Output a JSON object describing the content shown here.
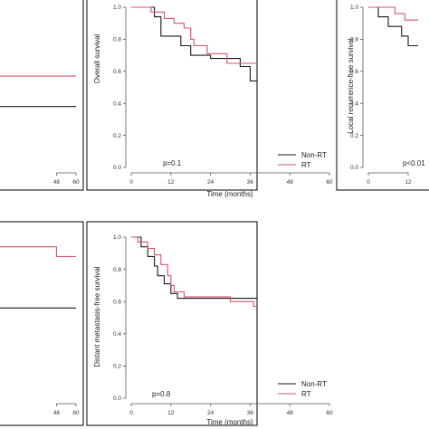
{
  "colors": {
    "non_rt": "#1a1a1a",
    "rt": "#d6536a"
  },
  "chart_data": [
    {
      "type": "line",
      "name": "top-left-partial",
      "xlabel": "",
      "ylabel": "",
      "p_value": "",
      "xlim": [
        0,
        60
      ],
      "ylim": [
        0,
        1
      ],
      "xticks": [
        48,
        60
      ],
      "yticks": [],
      "legend": {
        "entries": [],
        "placement": "bottom-right"
      },
      "series": [
        {
          "name": "Non-RT",
          "points": [
            [
              0,
              0.38
            ],
            [
              60,
              0.38
            ]
          ]
        },
        {
          "name": "RT",
          "points": [
            [
              0,
              0.57
            ],
            [
              60,
              0.57
            ]
          ]
        }
      ]
    },
    {
      "type": "line",
      "name": "overall-survival",
      "xlabel": "Time (months)",
      "ylabel": "Overall survival",
      "p_value": "p=0.1",
      "xlim": [
        0,
        60
      ],
      "ylim": [
        0,
        1
      ],
      "xticks": [
        0,
        12,
        24,
        36,
        48,
        60
      ],
      "yticks": [
        0.0,
        0.2,
        0.4,
        0.6,
        0.8,
        1.0
      ],
      "ytick_labels": [
        "0.0",
        "0.2",
        "0.4",
        "0.6",
        "0.8",
        "1.0"
      ],
      "legend": {
        "entries": [
          "Non-RT",
          "RT"
        ],
        "placement": "bottom-right"
      },
      "series": [
        {
          "name": "Non-RT",
          "points": [
            [
              0,
              1.0
            ],
            [
              7,
              1.0
            ],
            [
              7,
              0.94
            ],
            [
              9,
              0.94
            ],
            [
              9,
              0.82
            ],
            [
              15,
              0.82
            ],
            [
              15,
              0.76
            ],
            [
              18,
              0.76
            ],
            [
              18,
              0.7
            ],
            [
              24,
              0.7
            ],
            [
              24,
              0.68
            ],
            [
              33,
              0.68
            ],
            [
              33,
              0.63
            ],
            [
              36,
              0.63
            ],
            [
              36,
              0.54
            ],
            [
              47,
              0.54
            ],
            [
              47,
              0.46
            ],
            [
              56,
              0.46
            ],
            [
              56,
              0.38
            ],
            [
              60,
              0.38
            ]
          ]
        },
        {
          "name": "RT",
          "points": [
            [
              0,
              1.0
            ],
            [
              6,
              1.0
            ],
            [
              6,
              0.97
            ],
            [
              10,
              0.97
            ],
            [
              10,
              0.93
            ],
            [
              13,
              0.93
            ],
            [
              13,
              0.9
            ],
            [
              16,
              0.9
            ],
            [
              16,
              0.87
            ],
            [
              18,
              0.87
            ],
            [
              18,
              0.8
            ],
            [
              19,
              0.8
            ],
            [
              19,
              0.76
            ],
            [
              23,
              0.76
            ],
            [
              23,
              0.71
            ],
            [
              29,
              0.71
            ],
            [
              29,
              0.65
            ],
            [
              60,
              0.65
            ]
          ]
        }
      ]
    },
    {
      "type": "line",
      "name": "local-recurrence-free-survival-partial",
      "xlabel": "",
      "ylabel": "Local recurrence-free survival",
      "p_value": "p<0.01",
      "xlim": [
        0,
        60
      ],
      "ylim": [
        0,
        1
      ],
      "xticks": [
        0,
        12
      ],
      "yticks": [
        0.0,
        0.2,
        0.4,
        0.6,
        0.8,
        1.0
      ],
      "ytick_labels": [
        "0.0",
        "0.2",
        "0.4",
        "0.6",
        "0.8",
        "1.0"
      ],
      "legend": {
        "entries": [],
        "placement": "bottom-right"
      },
      "series": [
        {
          "name": "Non-RT",
          "points": [
            [
              0,
              1.0
            ],
            [
              3,
              1.0
            ],
            [
              3,
              0.94
            ],
            [
              6,
              0.94
            ],
            [
              6,
              0.88
            ],
            [
              10,
              0.88
            ],
            [
              10,
              0.82
            ],
            [
              12,
              0.82
            ],
            [
              12,
              0.76
            ],
            [
              15,
              0.76
            ]
          ]
        },
        {
          "name": "RT",
          "points": [
            [
              0,
              1.0
            ],
            [
              8,
              1.0
            ],
            [
              8,
              0.96
            ],
            [
              11,
              0.96
            ],
            [
              11,
              0.92
            ],
            [
              15,
              0.92
            ]
          ]
        }
      ]
    },
    {
      "type": "line",
      "name": "bottom-left-partial",
      "xlabel": "",
      "ylabel": "",
      "p_value": "",
      "xlim": [
        0,
        60
      ],
      "ylim": [
        0,
        1
      ],
      "xticks": [
        48,
        60
      ],
      "yticks": [],
      "legend": {
        "entries": [],
        "placement": "bottom-right"
      },
      "series": [
        {
          "name": "Non-RT",
          "points": [
            [
              0,
              0.56
            ],
            [
              60,
              0.56
            ]
          ]
        },
        {
          "name": "RT",
          "points": [
            [
              0,
              0.94
            ],
            [
              48,
              0.94
            ],
            [
              48,
              0.88
            ],
            [
              60,
              0.88
            ]
          ]
        }
      ]
    },
    {
      "type": "line",
      "name": "distant-metastasis-free-survival",
      "xlabel": "Time (months)",
      "ylabel": "Distant metastasis-free survival",
      "p_value": "p=0.8",
      "xlim": [
        0,
        60
      ],
      "ylim": [
        0,
        1
      ],
      "xticks": [
        0,
        12,
        24,
        36,
        48,
        60
      ],
      "yticks": [
        0.0,
        0.2,
        0.4,
        0.6,
        0.8,
        1.0
      ],
      "ytick_labels": [
        "0.0",
        "0.2",
        "0.4",
        "0.6",
        "0.8",
        "1.0"
      ],
      "legend": {
        "entries": [
          "Non-RT",
          "RT"
        ],
        "placement": "bottom-right"
      },
      "series": [
        {
          "name": "Non-RT",
          "points": [
            [
              0,
              1.0
            ],
            [
              3,
              1.0
            ],
            [
              3,
              0.94
            ],
            [
              5,
              0.94
            ],
            [
              5,
              0.88
            ],
            [
              7,
              0.88
            ],
            [
              7,
              0.82
            ],
            [
              8,
              0.82
            ],
            [
              8,
              0.76
            ],
            [
              10,
              0.76
            ],
            [
              10,
              0.71
            ],
            [
              12,
              0.71
            ],
            [
              12,
              0.65
            ],
            [
              14,
              0.65
            ],
            [
              14,
              0.62
            ],
            [
              60,
              0.62
            ]
          ]
        },
        {
          "name": "RT",
          "points": [
            [
              0,
              1.0
            ],
            [
              2,
              1.0
            ],
            [
              2,
              0.97
            ],
            [
              5,
              0.97
            ],
            [
              5,
              0.93
            ],
            [
              7,
              0.93
            ],
            [
              7,
              0.89
            ],
            [
              9,
              0.89
            ],
            [
              9,
              0.83
            ],
            [
              11,
              0.83
            ],
            [
              11,
              0.76
            ],
            [
              12,
              0.76
            ],
            [
              12,
              0.7
            ],
            [
              13,
              0.7
            ],
            [
              13,
              0.66
            ],
            [
              16,
              0.66
            ],
            [
              16,
              0.63
            ],
            [
              30,
              0.63
            ],
            [
              30,
              0.6
            ],
            [
              37,
              0.6
            ],
            [
              37,
              0.57
            ],
            [
              60,
              0.57
            ]
          ]
        }
      ]
    }
  ]
}
